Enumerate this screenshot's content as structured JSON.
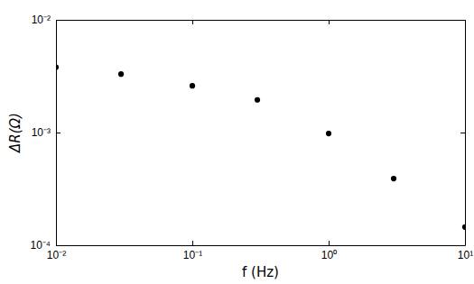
{
  "chart_data": {
    "type": "scatter",
    "x_label": "f (Hz)",
    "y_label": "ΔR(Ω)",
    "x": [
      0.01,
      0.03,
      0.1,
      0.3,
      1,
      3,
      10
    ],
    "values": [
      0.0038,
      0.0033,
      0.0026,
      0.00195,
      0.00098,
      0.00039,
      0.000145
    ],
    "color": "#000000",
    "marker": "circle",
    "xlim": [
      0.01,
      10
    ],
    "ylim": [
      0.0001,
      0.01
    ],
    "xticks": [
      {
        "value": 0.01,
        "label": "10⁻²"
      },
      {
        "value": 0.1,
        "label": "10⁻¹"
      },
      {
        "value": 1,
        "label": "10⁰"
      },
      {
        "value": 10,
        "label": "10¹"
      }
    ],
    "yticks": [
      {
        "value": 0.0001,
        "label": "10⁻⁴"
      },
      {
        "value": 0.001,
        "label": "10⁻³"
      },
      {
        "value": 0.01,
        "label": "10⁻²"
      }
    ],
    "log": true,
    "grid": false
  }
}
